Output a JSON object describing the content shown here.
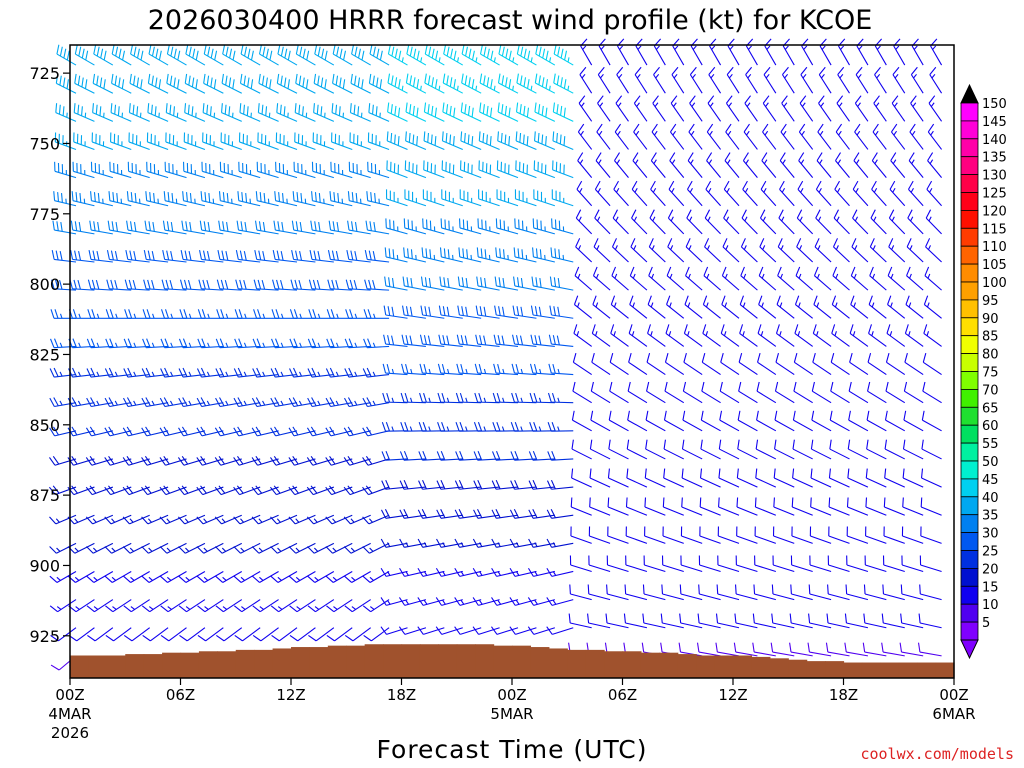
{
  "chart_data": {
    "type": "wind-barb-timeseries",
    "title": "2026030400 HRRR forecast wind profile (kt) for KCOE",
    "xlabel": "Forecast Time (UTC)",
    "ylabel": "Pressure (hPa)",
    "credit": "coolwx.com/models",
    "units": "kt",
    "y_ticks": [
      725,
      750,
      775,
      800,
      825,
      850,
      875,
      900,
      925
    ],
    "y_range": [
      715,
      940
    ],
    "x_range_hours": [
      0,
      48
    ],
    "x_ticks": [
      {
        "hour": 0,
        "lines": [
          "00Z",
          "4MAR",
          "2026"
        ]
      },
      {
        "hour": 6,
        "lines": [
          "06Z"
        ]
      },
      {
        "hour": 12,
        "lines": [
          "12Z"
        ]
      },
      {
        "hour": 18,
        "lines": [
          "18Z"
        ]
      },
      {
        "hour": 24,
        "lines": [
          "00Z",
          "5MAR"
        ]
      },
      {
        "hour": 30,
        "lines": [
          "06Z"
        ]
      },
      {
        "hour": 36,
        "lines": [
          "12Z"
        ]
      },
      {
        "hour": 42,
        "lines": [
          "18Z"
        ]
      },
      {
        "hour": 48,
        "lines": [
          "00Z",
          "6MAR"
        ]
      }
    ],
    "colorbar": {
      "labels": [
        150,
        145,
        140,
        135,
        130,
        125,
        120,
        115,
        110,
        105,
        100,
        95,
        90,
        85,
        80,
        75,
        70,
        65,
        60,
        55,
        50,
        45,
        40,
        35,
        30,
        25,
        20,
        15,
        10,
        5
      ],
      "colors": [
        "#ff00ff",
        "#ff00d8",
        "#ff00a8",
        "#ff0080",
        "#ff0048",
        "#ff0018",
        "#ff1000",
        "#ff3c00",
        "#ff6400",
        "#ff8c00",
        "#ffa000",
        "#ffc000",
        "#ffdf00",
        "#f0ff00",
        "#c8ff00",
        "#80ff00",
        "#40f000",
        "#20e030",
        "#00e060",
        "#00f0a0",
        "#00f0d0",
        "#00d0f0",
        "#00a8f0",
        "#0080f0",
        "#0058f0",
        "#0030e0",
        "#0010d0",
        "#1000f0",
        "#5000f0",
        "#8000ff"
      ]
    },
    "terrain": {
      "color": "#a0522d",
      "hours": [
        0,
        1,
        2,
        3,
        4,
        5,
        6,
        7,
        8,
        9,
        10,
        11,
        12,
        13,
        14,
        15,
        16,
        17,
        18,
        19,
        20,
        21,
        22,
        23,
        24,
        25,
        26,
        27,
        28,
        29,
        30,
        31,
        32,
        33,
        34,
        35,
        36,
        37,
        38,
        39,
        40,
        41,
        42,
        43,
        44,
        45,
        46,
        47,
        48
      ],
      "surface_pressure": [
        932,
        932,
        932,
        931.5,
        931.5,
        931,
        931,
        930.5,
        930.5,
        930,
        930,
        929.5,
        929,
        929,
        928.5,
        928.5,
        928,
        928,
        928,
        928,
        928,
        928,
        928,
        928.5,
        928.5,
        929,
        929.5,
        930,
        930,
        930.5,
        930.5,
        931,
        931,
        931.5,
        932,
        932,
        932,
        932.5,
        933,
        933.5,
        934,
        934,
        934.5,
        934.5,
        934.5,
        934.5,
        934.5,
        934.5,
        934.5
      ]
    },
    "barb_levels": [
      720,
      730,
      740,
      750,
      760,
      770,
      780,
      790,
      800,
      810,
      820,
      830,
      840,
      850,
      860,
      870,
      880,
      890,
      900,
      910,
      920,
      930
    ],
    "wind_profiles": [
      {
        "from_hour": 0,
        "to_hour": 17.9,
        "top_speed_kt": 40,
        "top_dir_deg": 300,
        "bottom_speed_kt": 10,
        "bottom_dir_deg": 230
      },
      {
        "from_hour": 18,
        "to_hour": 27.9,
        "top_speed_kt": 45,
        "top_dir_deg": 300,
        "bottom_speed_kt": 10,
        "bottom_dir_deg": 250
      },
      {
        "from_hour": 28,
        "to_hour": 48,
        "top_speed_kt": 15,
        "top_dir_deg": 330,
        "bottom_speed_kt": 10,
        "bottom_dir_deg": 280
      }
    ]
  }
}
